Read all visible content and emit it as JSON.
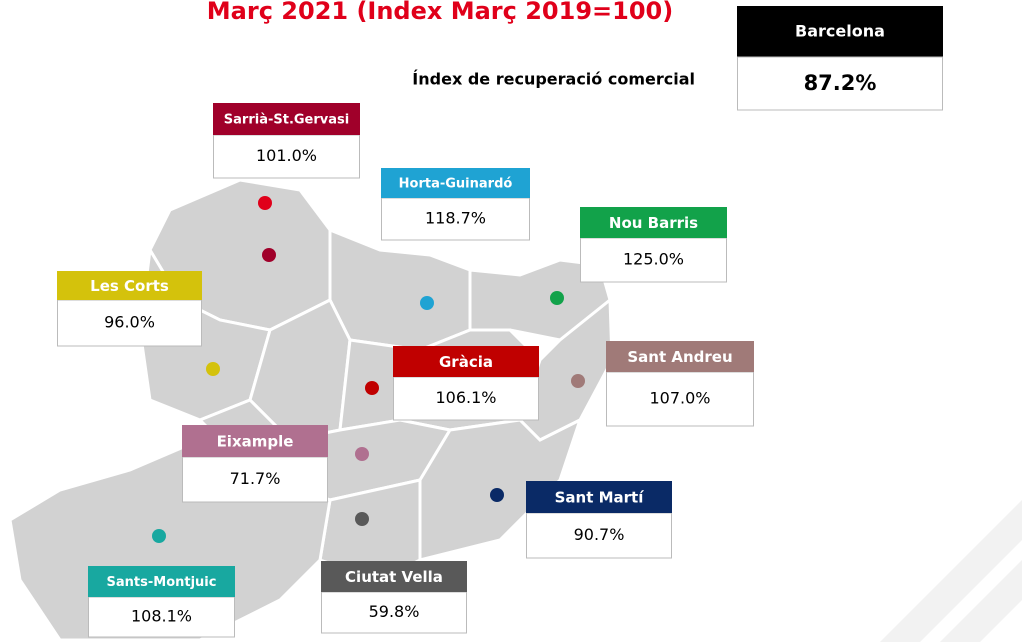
{
  "title": "Març 2021 (Índex Març 2019=100)",
  "subtitle": "Índex de recuperació comercial",
  "city": {
    "name": "Barcelona",
    "value": "87.2%"
  },
  "districts": [
    {
      "name": "Sarrià-St.Gervasi",
      "value": "101.0%",
      "color": "#a0002a"
    },
    {
      "name": "Horta-Guinardó",
      "value": "118.7%",
      "color": "#1fa3d3"
    },
    {
      "name": "Nou Barris",
      "value": "125.0%",
      "color": "#12a24a"
    },
    {
      "name": "Les Corts",
      "value": "96.0%",
      "color": "#d4c20c"
    },
    {
      "name": "Gràcia",
      "value": "106.1%",
      "color": "#c00000"
    },
    {
      "name": "Sant Andreu",
      "value": "107.0%",
      "color": "#a07a78"
    },
    {
      "name": "Eixample",
      "value": "71.7%",
      "color": "#b07090"
    },
    {
      "name": "Sant Martí",
      "value": "90.7%",
      "color": "#0a2a66"
    },
    {
      "name": "Ciutat Vella",
      "value": "59.8%",
      "color": "#595959"
    },
    {
      "name": "Sants-Montjuic",
      "value": "108.1%",
      "color": "#18a8a0"
    }
  ]
}
